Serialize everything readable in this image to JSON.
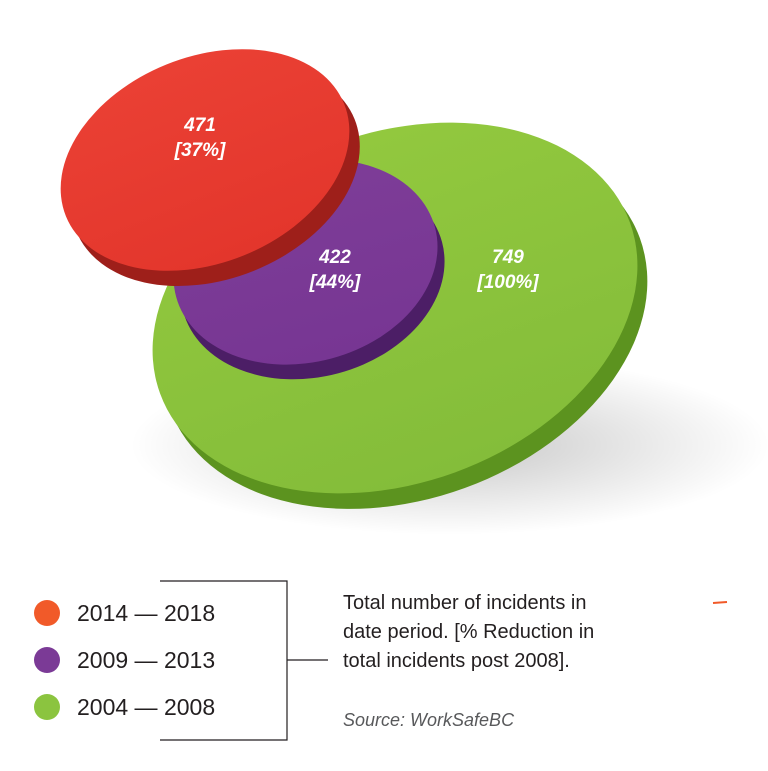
{
  "chart_data": {
    "type": "bubble",
    "series": [
      {
        "name": "2004 — 2008",
        "value": 749,
        "pct_label": "[100%]",
        "color": "#8bc43f"
      },
      {
        "name": "2009 — 2013",
        "value": 422,
        "pct_label": "[44%]",
        "color": "#7b3a96"
      },
      {
        "name": "2014 — 2018",
        "value": 471,
        "pct_label": "[37%]",
        "color": "#e8392f"
      }
    ],
    "legend": {
      "placement": "bottom-left",
      "items": [
        {
          "label": "2014 — 2018",
          "color": "#f15a29"
        },
        {
          "label": "2009 — 2013",
          "color": "#7b3a96"
        },
        {
          "label": "2004 — 2008",
          "color": "#8bc43f"
        }
      ]
    },
    "note": [
      "Total  number of incidents in",
      "date period.  [% Reduction in",
      "total incidents post 2008]."
    ],
    "source": "Source: WorkSafeBC"
  }
}
